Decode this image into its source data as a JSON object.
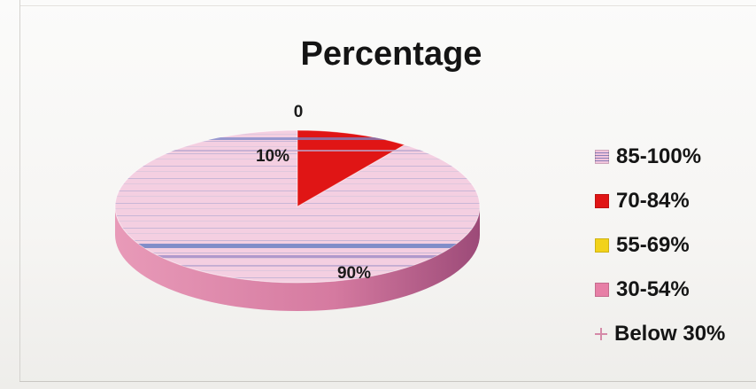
{
  "chart_data": {
    "type": "pie",
    "title": "Percentage",
    "categories": [
      "85-100%",
      "70-84%",
      "55-69%",
      "30-54%",
      "Below 30%"
    ],
    "values": [
      90,
      10,
      0,
      0,
      0
    ],
    "data_labels": [
      "90%",
      "10%",
      "0",
      "",
      ""
    ],
    "colors": [
      "#f1c6dc",
      "#e01515",
      "#f2d21a",
      "#e77fa6",
      "#f7e6ee"
    ],
    "style": "3d-pie",
    "legend": "right"
  }
}
